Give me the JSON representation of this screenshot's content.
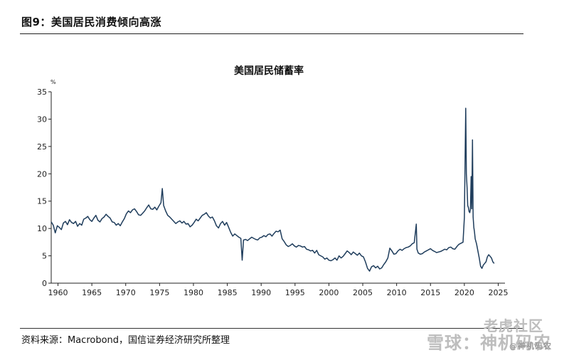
{
  "figure": {
    "title": "图9：美国居民消费倾向高涨",
    "source": "资料来源：Macrobond，国信证券经济研究所整理"
  },
  "watermarks": [
    "老虎社区",
    "雪球：神机码农",
    "@神机码农"
  ],
  "chart_data": {
    "type": "line",
    "title": "美国居民储蓄率",
    "ylabel": "%",
    "xlabel": "",
    "ylim": [
      0,
      35
    ],
    "xlim": [
      1959,
      2026
    ],
    "yticks": [
      "0",
      "5",
      "10",
      "15",
      "20",
      "25",
      "30",
      "35"
    ],
    "xticks": [
      "1960",
      "1965",
      "1970",
      "1975",
      "1980",
      "1985",
      "1990",
      "1995",
      "2000",
      "2005",
      "2010",
      "2015",
      "2020",
      "2025"
    ],
    "grid": false,
    "color": "#1f3d5c",
    "series": [
      {
        "x": [
          1959.0,
          1959.3,
          1959.6,
          1959.9,
          1960.2,
          1960.5,
          1960.8,
          1961.1,
          1961.4,
          1961.7,
          1962.0,
          1962.3,
          1962.6,
          1962.9,
          1963.2,
          1963.5,
          1963.8,
          1964.1,
          1964.4,
          1964.7,
          1965.0,
          1965.3,
          1965.6,
          1965.9,
          1966.2,
          1966.5,
          1966.8,
          1967.1,
          1967.4,
          1967.7,
          1968.0,
          1968.3,
          1968.6,
          1968.9,
          1969.2,
          1969.5,
          1969.8,
          1970.1,
          1970.4,
          1970.7,
          1971.0,
          1971.3,
          1971.6,
          1971.9,
          1972.2,
          1972.5,
          1972.8,
          1973.1,
          1973.4,
          1973.7,
          1974.0,
          1974.3,
          1974.6,
          1974.9,
          1975.2,
          1975.4,
          1975.6,
          1975.9,
          1976.2,
          1976.5,
          1976.8,
          1977.1,
          1977.4,
          1977.7,
          1978.0,
          1978.3,
          1978.6,
          1978.9,
          1979.2,
          1979.5,
          1979.8,
          1980.1,
          1980.4,
          1980.7,
          1981.0,
          1981.3,
          1981.6,
          1981.9,
          1982.2,
          1982.5,
          1982.8,
          1983.1,
          1983.4,
          1983.7,
          1984.0,
          1984.3,
          1984.6,
          1984.9,
          1985.2,
          1985.5,
          1985.8,
          1986.1,
          1986.4,
          1986.7,
          1987.0,
          1987.2,
          1987.4,
          1987.7,
          1988.0,
          1988.3,
          1988.6,
          1988.9,
          1989.2,
          1989.5,
          1989.8,
          1990.1,
          1990.4,
          1990.7,
          1991.0,
          1991.3,
          1991.6,
          1991.9,
          1992.2,
          1992.5,
          1992.8,
          1993.1,
          1993.4,
          1993.7,
          1994.0,
          1994.3,
          1994.6,
          1994.9,
          1995.2,
          1995.5,
          1995.8,
          1996.1,
          1996.4,
          1996.7,
          1997.0,
          1997.3,
          1997.6,
          1997.9,
          1998.2,
          1998.5,
          1998.8,
          1999.1,
          1999.4,
          1999.7,
          2000.0,
          2000.3,
          2000.6,
          2000.9,
          2001.2,
          2001.5,
          2001.8,
          2002.1,
          2002.4,
          2002.7,
          2003.0,
          2003.3,
          2003.6,
          2003.9,
          2004.2,
          2004.5,
          2004.8,
          2005.1,
          2005.4,
          2005.7,
          2006.0,
          2006.3,
          2006.6,
          2006.9,
          2007.2,
          2007.5,
          2007.8,
          2008.1,
          2008.4,
          2008.7,
          2009.0,
          2009.3,
          2009.6,
          2009.9,
          2010.2,
          2010.5,
          2010.8,
          2011.1,
          2011.4,
          2011.7,
          2012.0,
          2012.3,
          2012.6,
          2012.9,
          2013.0,
          2013.2,
          2013.5,
          2013.8,
          2014.1,
          2014.4,
          2014.7,
          2015.0,
          2015.3,
          2015.6,
          2015.9,
          2016.2,
          2016.5,
          2016.8,
          2017.1,
          2017.4,
          2017.7,
          2018.0,
          2018.3,
          2018.6,
          2018.9,
          2019.2,
          2019.5,
          2019.8,
          2020.0,
          2020.2,
          2020.3,
          2020.4,
          2020.5,
          2020.6,
          2020.7,
          2020.8,
          2020.9,
          2021.0,
          2021.1,
          2021.2,
          2021.3,
          2021.4,
          2021.5,
          2021.6,
          2021.8,
          2022.0,
          2022.2,
          2022.4,
          2022.6,
          2022.8,
          2023.0,
          2023.2,
          2023.4,
          2023.6,
          2023.8,
          2024.0,
          2024.2,
          2024.4
        ],
        "y": [
          11.2,
          10.6,
          9.2,
          10.5,
          10.2,
          9.8,
          11.0,
          11.3,
          10.7,
          11.6,
          11.1,
          10.9,
          11.3,
          10.4,
          10.9,
          10.6,
          11.7,
          11.9,
          12.2,
          11.6,
          11.3,
          11.9,
          12.4,
          11.5,
          11.2,
          11.8,
          12.1,
          12.6,
          12.2,
          11.9,
          11.2,
          11.1,
          10.6,
          10.9,
          10.5,
          11.2,
          11.8,
          12.7,
          13.2,
          12.9,
          13.4,
          13.6,
          13.1,
          12.5,
          12.4,
          12.8,
          13.2,
          13.8,
          14.3,
          13.6,
          13.5,
          13.9,
          13.4,
          14.1,
          14.7,
          17.3,
          14.2,
          13.2,
          12.4,
          12.1,
          11.7,
          11.3,
          10.9,
          11.2,
          11.4,
          11.0,
          11.3,
          10.8,
          10.9,
          10.3,
          10.6,
          11.1,
          11.7,
          11.4,
          11.9,
          12.4,
          12.6,
          12.9,
          12.3,
          11.9,
          12.1,
          11.4,
          10.5,
          10.1,
          10.9,
          11.3,
          10.6,
          11.1,
          10.2,
          9.3,
          8.6,
          9.0,
          8.7,
          8.4,
          8.2,
          4.2,
          7.9,
          8.0,
          7.8,
          8.1,
          8.4,
          8.2,
          8.0,
          7.9,
          8.3,
          8.4,
          8.7,
          8.5,
          8.9,
          9.0,
          8.6,
          9.1,
          9.5,
          9.4,
          9.7,
          8.1,
          7.6,
          7.0,
          6.7,
          6.9,
          7.2,
          6.8,
          6.6,
          6.9,
          6.8,
          6.6,
          6.7,
          6.2,
          6.1,
          5.9,
          6.0,
          5.5,
          6.0,
          5.2,
          5.0,
          4.8,
          4.4,
          4.6,
          4.2,
          4.1,
          4.3,
          4.6,
          4.2,
          5.0,
          4.6,
          4.9,
          5.4,
          5.9,
          5.6,
          5.2,
          5.7,
          5.4,
          5.1,
          5.5,
          5.0,
          4.8,
          3.9,
          2.7,
          2.2,
          3.0,
          3.2,
          2.8,
          3.1,
          2.6,
          2.8,
          3.4,
          3.9,
          4.6,
          6.4,
          5.9,
          5.3,
          5.4,
          5.9,
          6.2,
          6.0,
          6.3,
          6.5,
          6.6,
          6.8,
          7.2,
          7.4,
          10.8,
          6.2,
          5.5,
          5.3,
          5.4,
          5.7,
          5.9,
          6.1,
          6.3,
          6.0,
          5.8,
          5.6,
          5.7,
          5.8,
          6.0,
          6.2,
          6.1,
          6.5,
          6.6,
          6.3,
          6.2,
          6.7,
          7.1,
          7.3,
          7.5,
          12.0,
          32.0,
          20.0,
          17.5,
          14.2,
          13.8,
          13.1,
          12.9,
          13.5,
          19.5,
          13.6,
          26.2,
          12.1,
          10.2,
          9.4,
          8.1,
          7.2,
          5.9,
          4.6,
          3.1,
          2.7,
          3.3,
          3.6,
          3.9,
          4.8,
          5.2,
          4.9,
          4.6,
          3.9,
          3.6
        ]
      }
    ]
  }
}
